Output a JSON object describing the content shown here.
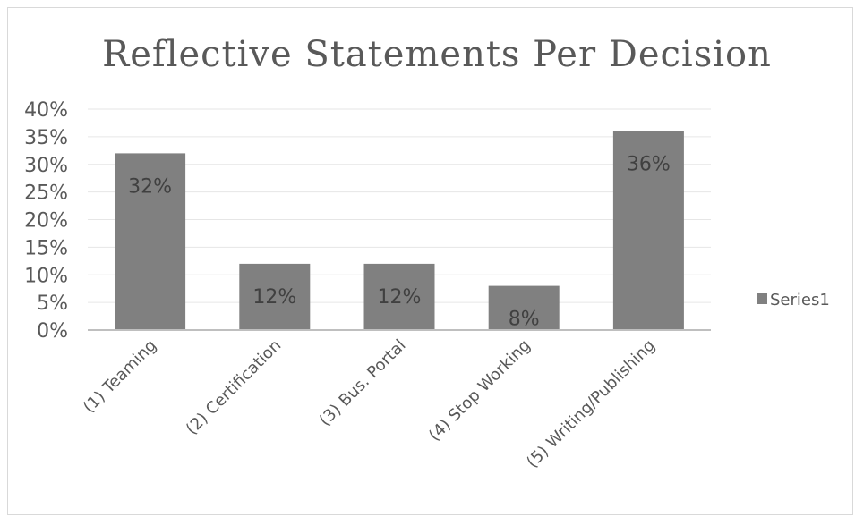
{
  "chart_data": {
    "type": "bar",
    "title": "Reflective Statements Per Decision",
    "xlabel": "",
    "ylabel": "",
    "categories": [
      "(1) Teaming",
      "(2) Certification",
      "(3) Bus. Portal",
      "(4) Stop Working",
      "(5) Writing/Publishing"
    ],
    "series": [
      {
        "name": "Series1",
        "values": [
          0.32,
          0.12,
          0.12,
          0.08,
          0.36
        ],
        "color": "#808080"
      }
    ],
    "data_labels": [
      "32%",
      "12%",
      "12%",
      "8%",
      "36%"
    ],
    "yticks": [
      0,
      0.05,
      0.1,
      0.15,
      0.2,
      0.25,
      0.3,
      0.35,
      0.4
    ],
    "ytick_labels": [
      "0%",
      "5%",
      "10%",
      "15%",
      "20%",
      "25%",
      "30%",
      "35%",
      "40%"
    ],
    "ylim": [
      0,
      0.4
    ],
    "grid": true,
    "legend_position": "right",
    "colors": {
      "gridline": "#e6e6e6",
      "axis": "#bfbfbf",
      "text": "#595959"
    }
  }
}
